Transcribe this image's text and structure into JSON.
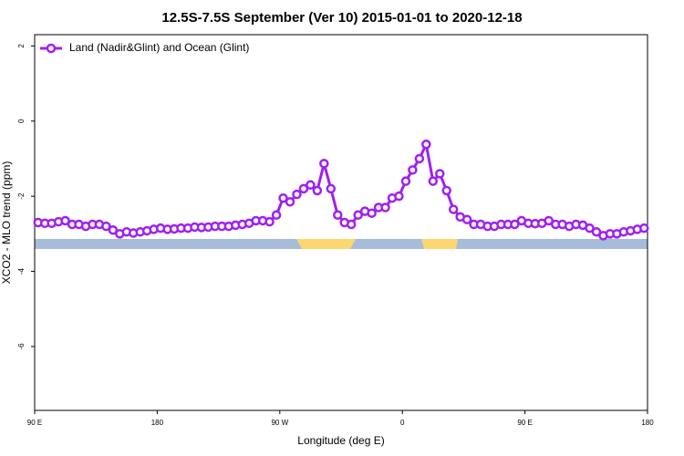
{
  "chart_data": {
    "type": "line",
    "title": "12.5S-7.5S September (Ver 10)   2015-01-01 to 2020-12-18",
    "x_label": "Longitude (deg E)",
    "y_label": "XCO2 - MLO trend (ppm)",
    "xlim": [
      -270,
      180
    ],
    "xticks": [
      {
        "value": -270,
        "label": "90 E"
      },
      {
        "value": -180,
        "label": "180"
      },
      {
        "value": -90,
        "label": "90 W"
      },
      0,
      {
        "value": 90,
        "label": "90 E"
      },
      180
    ],
    "ylim": [
      -7.7,
      2.3
    ],
    "yticks": [
      2,
      0,
      -2,
      -4,
      -6
    ],
    "legend": "upper left",
    "series": [
      {
        "name": "Land (Nadir&Glint) and Ocean (Glint)",
        "color": "#a020f0",
        "x": [
          -267.5,
          -262.5,
          -257.5,
          -252.5,
          -247.5,
          -242.5,
          -237.5,
          -232.5,
          -227.5,
          -222.5,
          -217.5,
          -212.5,
          -207.5,
          -202.5,
          -197.5,
          -192.5,
          -187.5,
          -182.5,
          -177.5,
          -172.5,
          -167.5,
          -162.5,
          -157.5,
          -152.5,
          -147.5,
          -142.5,
          -137.5,
          -132.5,
          -127.5,
          -122.5,
          -117.5,
          -112.5,
          -107.5,
          -102.5,
          -97.5,
          -92.5,
          -87.5,
          -82.5,
          -77.5,
          -72.5,
          -67.5,
          -62.5,
          -57.5,
          -52.5,
          -47.5,
          -42.5,
          -37.5,
          -32.5,
          -27.5,
          -22.5,
          -17.5,
          -12.5,
          -7.5,
          -2.5,
          2.5,
          7.5,
          12.5,
          17.5,
          22.5,
          27.5,
          32.5,
          37.5,
          42.5,
          47.5,
          52.5,
          57.5,
          62.5,
          67.5,
          72.5,
          77.5,
          82.5,
          87.5,
          92.5,
          97.5,
          102.5,
          107.5,
          112.5,
          117.5,
          122.5,
          127.5,
          132.5,
          137.5,
          142.5,
          147.5,
          152.5,
          157.5,
          162.5,
          167.5,
          172.5,
          177.5
        ],
        "values": [
          -2.7,
          -2.72,
          -2.72,
          -2.68,
          -2.65,
          -2.75,
          -2.75,
          -2.8,
          -2.75,
          -2.75,
          -2.8,
          -2.9,
          -3.0,
          -2.95,
          -2.98,
          -2.95,
          -2.92,
          -2.88,
          -2.85,
          -2.88,
          -2.87,
          -2.85,
          -2.85,
          -2.82,
          -2.83,
          -2.82,
          -2.8,
          -2.8,
          -2.8,
          -2.77,
          -2.75,
          -2.72,
          -2.65,
          -2.65,
          -2.68,
          -2.5,
          -2.05,
          -2.15,
          -1.95,
          -1.8,
          -1.7,
          -1.85,
          -1.13,
          -1.8,
          -2.5,
          -2.7,
          -2.75,
          -2.5,
          -2.4,
          -2.45,
          -2.3,
          -2.3,
          -2.05,
          -2.0,
          -1.6,
          -1.3,
          -1.0,
          -0.62,
          -1.6,
          -1.4,
          -1.85,
          -2.35,
          -2.55,
          -2.62,
          -2.75,
          -2.75,
          -2.8,
          -2.8,
          -2.75,
          -2.75,
          -2.75,
          -2.65,
          -2.72,
          -2.73,
          -2.72,
          -2.65,
          -2.75,
          -2.75,
          -2.8,
          -2.75,
          -2.77,
          -2.85,
          -2.95,
          -3.05,
          -3.0,
          -3.0,
          -2.95,
          -2.92,
          -2.88,
          -2.85
        ]
      }
    ]
  }
}
